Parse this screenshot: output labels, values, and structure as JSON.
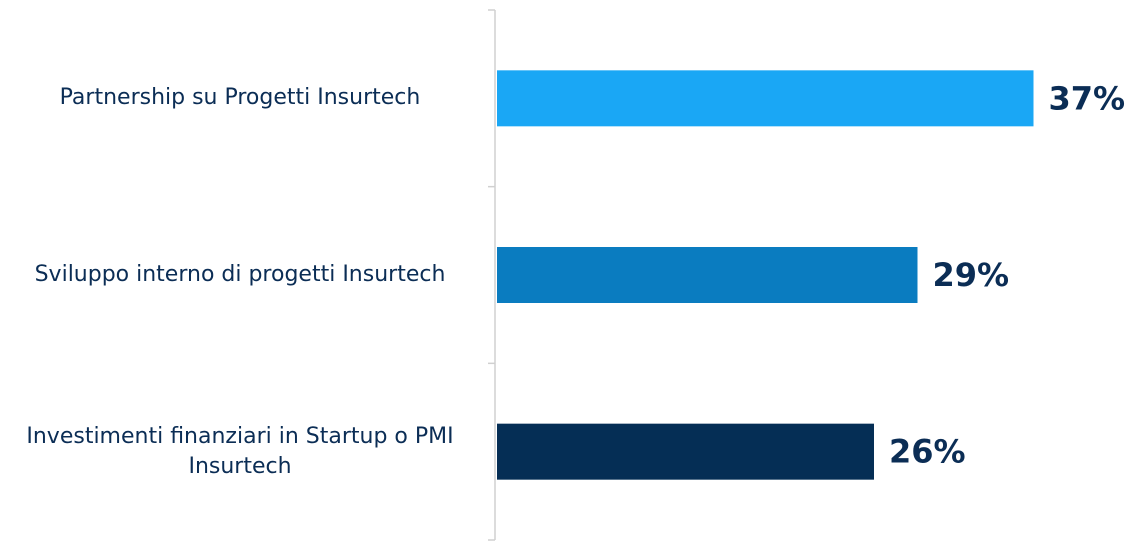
{
  "chart_data": {
    "type": "bar",
    "orientation": "horizontal",
    "categories": [
      "Partnership su Progetti Insurtech",
      "Sviluppo interno di progetti Insurtech",
      "Investimenti finanziari in Startup o PMI Insurtech"
    ],
    "values": [
      37,
      29,
      26
    ],
    "value_labels": [
      "37%",
      "29%",
      "26%"
    ],
    "colors": [
      "#1aa7f5",
      "#0a7cc0",
      "#052e55"
    ]
  }
}
